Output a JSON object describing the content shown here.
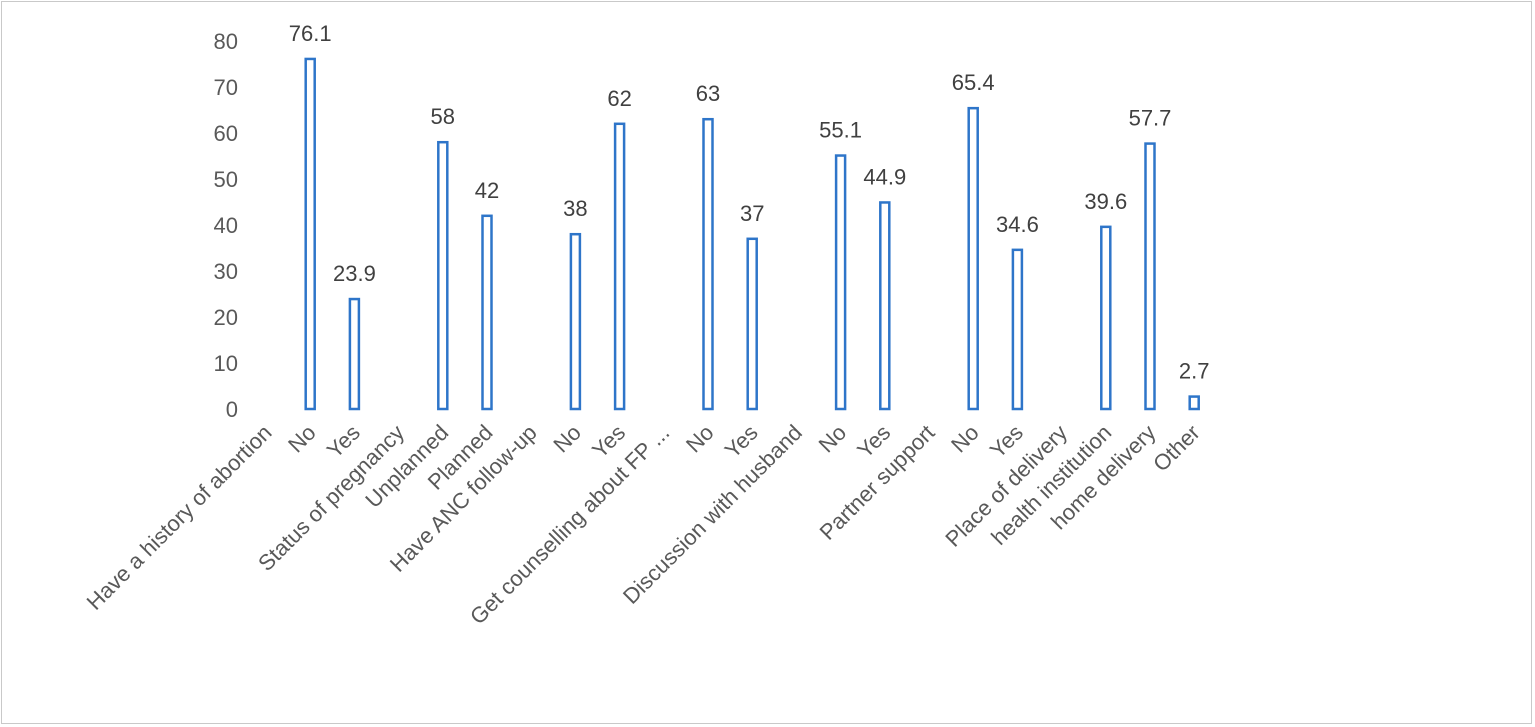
{
  "chart_data": {
    "type": "bar",
    "title": "",
    "xlabel": "",
    "ylabel": "",
    "ylim": [
      0,
      80
    ],
    "yticks": [
      0,
      10,
      20,
      30,
      40,
      50,
      60,
      70,
      80
    ],
    "grid": false,
    "bar_color": "#2e75c9",
    "bar_fill": "#ffffff",
    "categories": [
      "Have a history of abortion",
      "No",
      "Yes",
      "Status of  pregnancy",
      "Unplanned",
      "Planned",
      "Have ANC follow-up",
      "No",
      "Yes",
      "Get counselling about FP ...",
      "No",
      "Yes",
      "Discussion with  husband",
      "No",
      "Yes",
      "Partner support",
      "No",
      "Yes",
      "Place of delivery",
      "health institution",
      "home delivery",
      "Other"
    ],
    "values": [
      null,
      76.1,
      23.9,
      null,
      58,
      42,
      null,
      38,
      62,
      null,
      63,
      37,
      null,
      55.1,
      44.9,
      null,
      65.4,
      34.6,
      null,
      39.6,
      57.7,
      2.7
    ],
    "data_labels": [
      "",
      "76.1",
      "23.9",
      "",
      "58",
      "42",
      "",
      "38",
      "62",
      "",
      "63",
      "37",
      "",
      "55.1",
      "44.9",
      "",
      "65.4",
      "34.6",
      "",
      "39.6",
      "57.7",
      "2.7"
    ]
  }
}
